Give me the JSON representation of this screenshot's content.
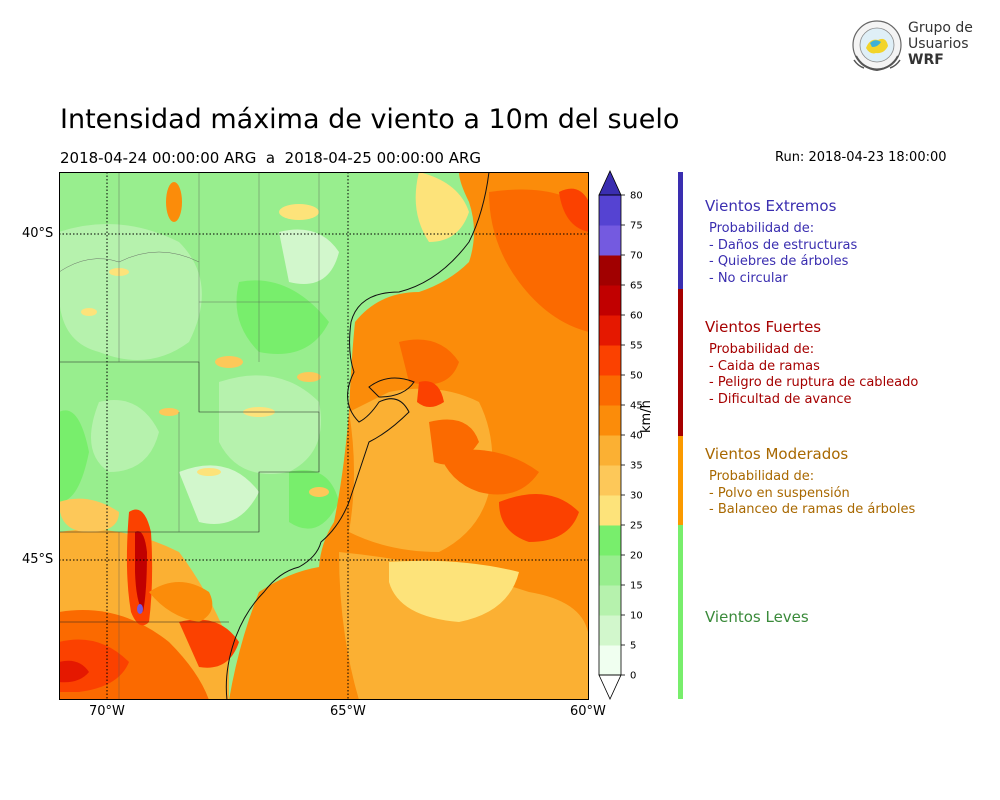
{
  "title": "Intensidad máxima de viento a 10m del suelo",
  "period": "2018-04-24 00:00:00 ARG  a  2018-04-25 00:00:00 ARG",
  "run": "Run: 2018-04-23 18:00:00",
  "logo": {
    "line1": "Grupo de",
    "line2": "Usuarios",
    "line3": "WRF",
    "icon": "globe-emblem-icon"
  },
  "map": {
    "lat_labels": [
      "40°S",
      "45°S"
    ],
    "lon_labels": [
      "70°W",
      "65°W",
      "60°W"
    ],
    "lat_range": [
      -48.2,
      -39.1
    ],
    "lon_range": [
      -71.0,
      -60.0
    ]
  },
  "colorbar": {
    "unit": "km/h",
    "ticks": [
      "0",
      "5",
      "10",
      "15",
      "20",
      "25",
      "30",
      "35",
      "40",
      "45",
      "50",
      "55",
      "60",
      "65",
      "70",
      "75",
      "80"
    ],
    "colors": [
      "#f0fff0",
      "#d2f7cc",
      "#b6f2ad",
      "#98ee8e",
      "#78ee6c",
      "#fde37a",
      "#fdc859",
      "#fbb033",
      "#fb8c0a",
      "#fb6a00",
      "#fb4100",
      "#e51800",
      "#c10000",
      "#a10000",
      "#745ae0",
      "#5543d2",
      "#3a2eb0"
    ]
  },
  "categories": [
    {
      "title": "Vientos Extremos",
      "color": "#3a2eb0",
      "lines": [
        "Probabilidad de:",
        "- Daños de estructuras",
        "- Quiebres de árboles",
        "- No circular"
      ]
    },
    {
      "title": "Vientos Fuertes",
      "color": "#a50000",
      "lines": [
        "Probabilidad de:",
        "- Caida de ramas",
        "- Peligro de ruptura de cableado",
        "- Dificultad de avance"
      ]
    },
    {
      "title": "Vientos Moderados",
      "color": "#a86800",
      "lines": [
        "Probabilidad de:",
        "- Polvo en suspensión",
        "- Balanceo de ramas de árboles"
      ]
    },
    {
      "title": "Vientos Leves",
      "color": "#3a8a3a",
      "lines": []
    }
  ],
  "category_bar_colors": [
    "#3a2eb0",
    "#a50000",
    "#fb9a00",
    "#78ee6c"
  ]
}
